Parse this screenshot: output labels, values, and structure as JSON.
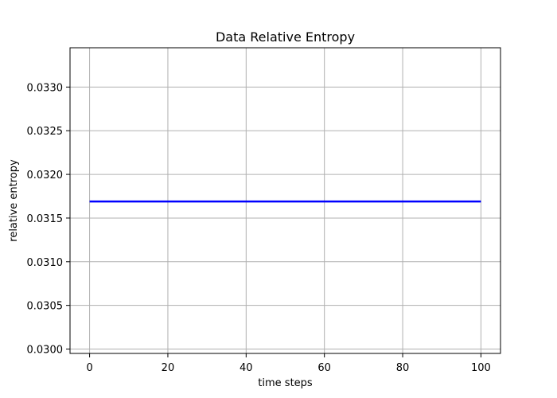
{
  "chart_data": {
    "type": "line",
    "title": "Data Relative Entropy",
    "xlabel": "time steps",
    "ylabel": "relative entropy",
    "xlim": [
      -5,
      105
    ],
    "ylim": [
      0.02995,
      0.03345
    ],
    "x_ticks": [
      0,
      20,
      40,
      60,
      80,
      100
    ],
    "x_tick_labels": [
      "0",
      "20",
      "40",
      "60",
      "80",
      "100"
    ],
    "y_ticks": [
      0.03,
      0.0305,
      0.031,
      0.0315,
      0.032,
      0.0325,
      0.033
    ],
    "y_tick_labels": [
      "0.0300",
      "0.0305",
      "0.0310",
      "0.0315",
      "0.0320",
      "0.0325",
      "0.0330"
    ],
    "grid": true,
    "series": [
      {
        "color": "#0000ff",
        "x": [
          0,
          100
        ],
        "y": [
          0.03169,
          0.03169
        ]
      }
    ]
  }
}
